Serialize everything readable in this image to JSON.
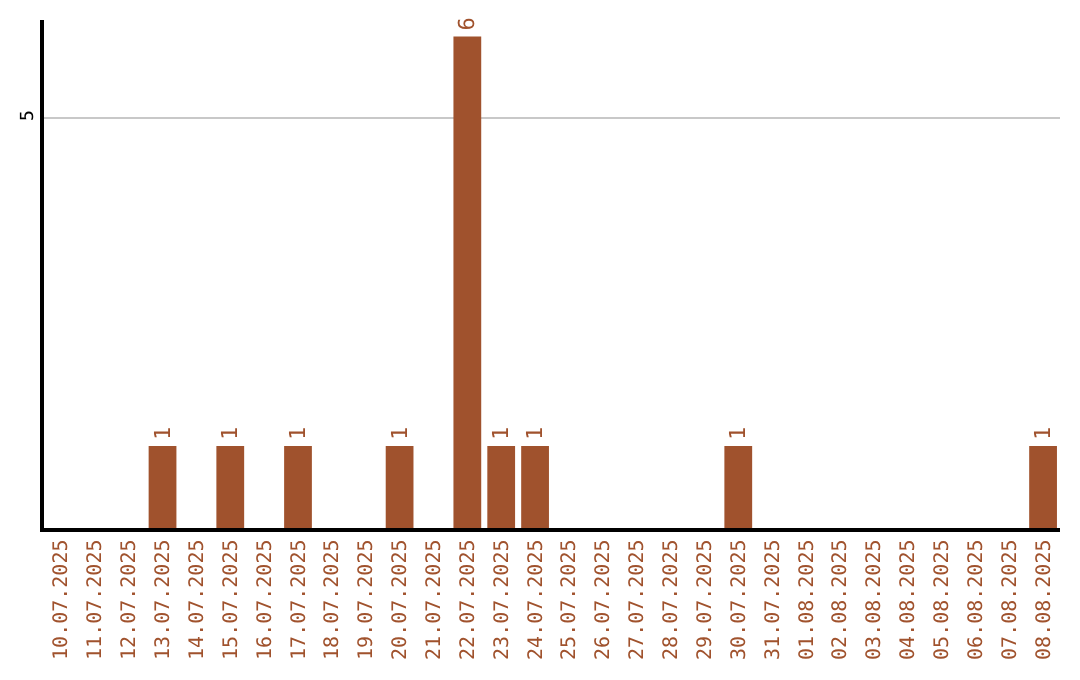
{
  "chart_data": {
    "type": "bar",
    "categories": [
      "10.07.2025",
      "11.07.2025",
      "12.07.2025",
      "13.07.2025",
      "14.07.2025",
      "15.07.2025",
      "16.07.2025",
      "17.07.2025",
      "18.07.2025",
      "19.07.2025",
      "20.07.2025",
      "21.07.2025",
      "22.07.2025",
      "23.07.2025",
      "24.07.2025",
      "25.07.2025",
      "26.07.2025",
      "27.07.2025",
      "28.07.2025",
      "29.07.2025",
      "30.07.2025",
      "31.07.2025",
      "01.08.2025",
      "02.08.2025",
      "03.08.2025",
      "04.08.2025",
      "05.08.2025",
      "06.08.2025",
      "07.08.2025",
      "08.08.2025"
    ],
    "values": [
      0,
      0,
      0,
      1,
      0,
      1,
      0,
      1,
      0,
      0,
      1,
      0,
      6,
      1,
      1,
      0,
      0,
      0,
      0,
      0,
      1,
      0,
      0,
      0,
      0,
      0,
      0,
      0,
      0,
      1
    ],
    "color": "#a0522d",
    "value_labels": [
      null,
      null,
      null,
      "1",
      null,
      "1",
      null,
      "1",
      null,
      null,
      "1",
      null,
      "6",
      "1",
      "1",
      null,
      null,
      null,
      null,
      null,
      "1",
      null,
      null,
      null,
      null,
      null,
      null,
      null,
      null,
      "1"
    ],
    "ylim": [
      0,
      6.2
    ],
    "yticks": [
      5
    ],
    "grid": "y"
  }
}
